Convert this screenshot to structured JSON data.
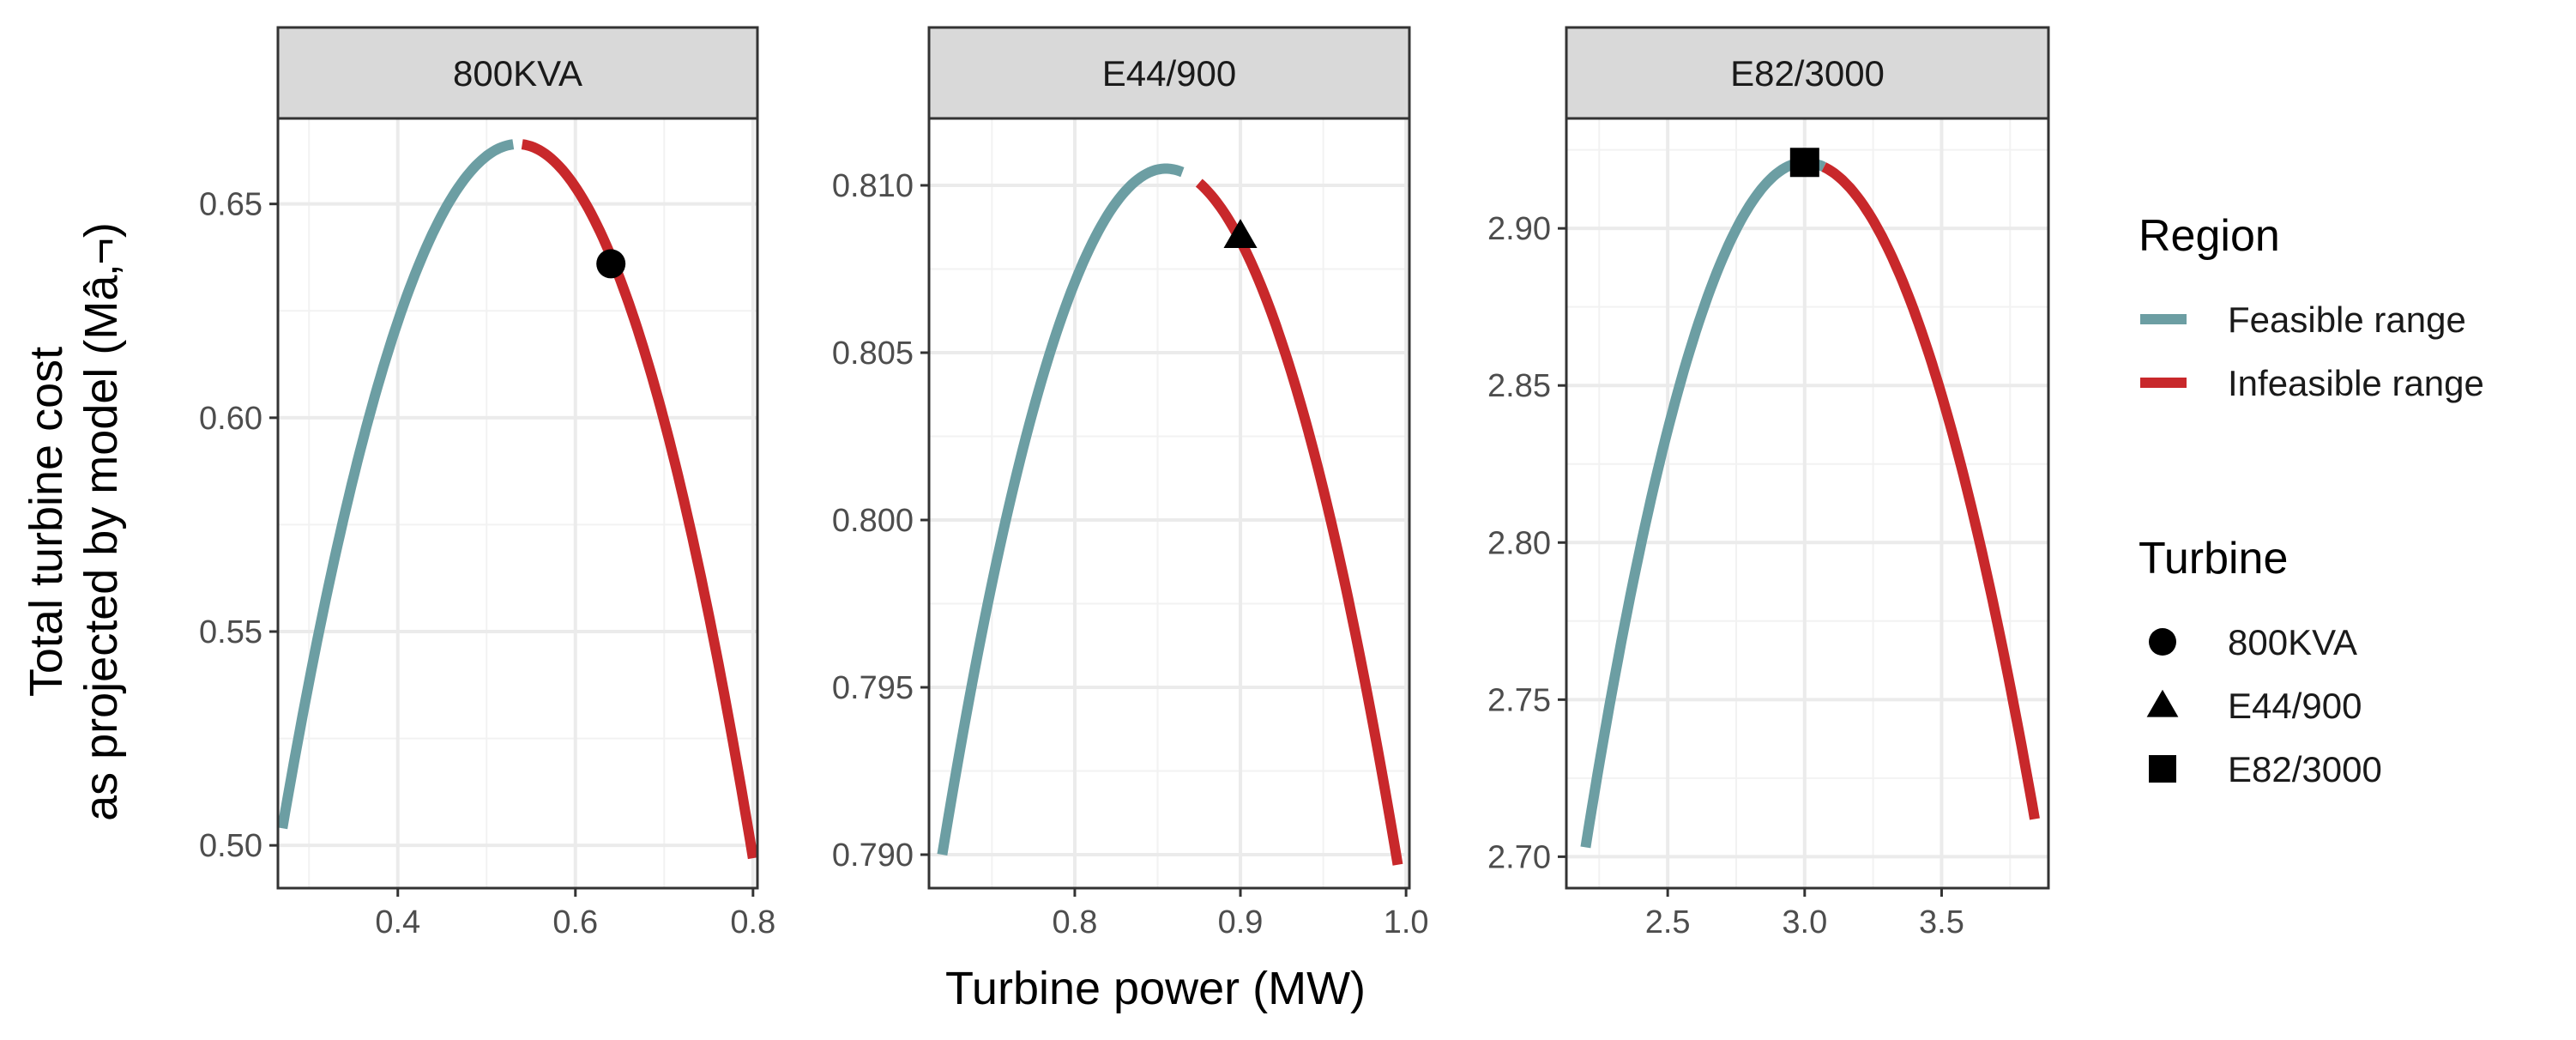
{
  "chart_data": {
    "type": "line",
    "ylabel": [
      "Total turbine cost",
      "as projected by model (Mâ‚¬)"
    ],
    "xlabel": "Turbine power (MW)",
    "colors": {
      "feasible": "#6c9ea3",
      "infeasible": "#c8282b"
    },
    "legend": {
      "placement": "right",
      "region_title": "Region",
      "region_items": [
        {
          "label": "Feasible range",
          "color": "#6c9ea3"
        },
        {
          "label": "Infeasible range",
          "color": "#c8282b"
        }
      ],
      "turbine_title": "Turbine",
      "turbine_items": [
        {
          "label": "800KVA",
          "shape": "circle"
        },
        {
          "label": "E44/900",
          "shape": "triangle"
        },
        {
          "label": "E82/3000",
          "shape": "square"
        }
      ]
    },
    "grid": true,
    "panels": [
      {
        "name": "800KVA",
        "xlim": [
          0.265,
          0.805
        ],
        "ylim": [
          0.49,
          0.67
        ],
        "xticks": [
          0.4,
          0.6,
          0.8
        ],
        "xtick_labels": [
          "0.4",
          "0.6",
          "0.8"
        ],
        "yticks": [
          0.5,
          0.55,
          0.6,
          0.65
        ],
        "ytick_labels": [
          "0.50",
          "0.55",
          "0.60",
          "0.65"
        ],
        "curve": {
          "x_start": 0.27,
          "x_peak": 0.535,
          "y_peak": 0.664,
          "x_end": 0.8,
          "y_start": 0.504,
          "y_end": 0.497
        },
        "feasible_until": 0.53,
        "infeasible_from": 0.54,
        "marker": {
          "shape": "circle",
          "x": 0.64,
          "y": 0.636
        }
      },
      {
        "name": "E44/900",
        "xlim": [
          0.712,
          1.002
        ],
        "ylim": [
          0.789,
          0.812
        ],
        "xticks": [
          0.8,
          0.9,
          1.0
        ],
        "xtick_labels": [
          "0.8",
          "0.9",
          "1.0"
        ],
        "yticks": [
          0.79,
          0.795,
          0.8,
          0.805,
          0.81
        ],
        "ytick_labels": [
          "0.790",
          "0.795",
          "0.800",
          "0.805",
          "0.810"
        ],
        "curve": {
          "x_start": 0.72,
          "x_peak": 0.855,
          "y_peak": 0.8105,
          "x_end": 0.995,
          "y_start": 0.79,
          "y_end": 0.7897
        },
        "feasible_until": 0.865,
        "infeasible_from": 0.875,
        "marker": {
          "shape": "triangle",
          "x": 0.9,
          "y": 0.8085
        }
      },
      {
        "name": "E82/3000",
        "xlim": [
          2.13,
          3.89
        ],
        "ylim": [
          2.69,
          2.935
        ],
        "xticks": [
          2.5,
          3.0,
          3.5
        ],
        "xtick_labels": [
          "2.5",
          "3.0",
          "3.5"
        ],
        "yticks": [
          2.7,
          2.75,
          2.8,
          2.85,
          2.9
        ],
        "ytick_labels": [
          "2.70",
          "2.75",
          "2.80",
          "2.85",
          "2.90"
        ],
        "curve": {
          "x_start": 2.2,
          "x_peak": 3.0,
          "y_peak": 2.921,
          "x_end": 3.84,
          "y_start": 2.703,
          "y_end": 2.712
        },
        "feasible_until": 3.07,
        "infeasible_from": 3.07,
        "marker": {
          "shape": "square",
          "x": 3.0,
          "y": 2.921
        }
      }
    ]
  }
}
